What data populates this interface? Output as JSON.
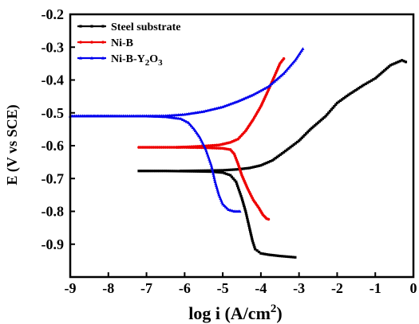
{
  "chart_data": {
    "type": "line",
    "xlabel": {
      "main": "log i (A/cm",
      "sup": "2",
      "tail": ")"
    },
    "ylabel": "E (V vs SCE)",
    "xlim": [
      -9,
      0
    ],
    "ylim": [
      -1.0,
      -0.2
    ],
    "x_ticks": [
      "-9",
      "-8",
      "-7",
      "-6",
      "-5",
      "-4",
      "-3",
      "-2",
      "-1",
      "0"
    ],
    "y_ticks": [
      "-0.2",
      "-0.3",
      "-0.4",
      "-0.5",
      "-0.6",
      "-0.7",
      "-0.8",
      "-0.9"
    ],
    "y_reversed": true,
    "legend_position": "top-left",
    "series": [
      {
        "name": "Steel substrate",
        "legend_parts": [
          {
            "t": "Steel substrate"
          }
        ],
        "color": "#000000",
        "marker": "square",
        "cathodic": [
          [
            -7.2,
            -0.677
          ],
          [
            -6.5,
            -0.677
          ],
          [
            -5.8,
            -0.678
          ],
          [
            -5.3,
            -0.679
          ],
          [
            -5.0,
            -0.682
          ],
          [
            -4.8,
            -0.69
          ],
          [
            -4.65,
            -0.71
          ],
          [
            -4.5,
            -0.76
          ],
          [
            -4.4,
            -0.8
          ],
          [
            -4.3,
            -0.85
          ],
          [
            -4.22,
            -0.89
          ],
          [
            -4.15,
            -0.915
          ],
          [
            -4.0,
            -0.928
          ],
          [
            -3.8,
            -0.932
          ],
          [
            -3.5,
            -0.936
          ],
          [
            -3.1,
            -0.94
          ]
        ],
        "anodic": [
          [
            -6.1,
            -0.677
          ],
          [
            -5.5,
            -0.676
          ],
          [
            -5.0,
            -0.675
          ],
          [
            -4.6,
            -0.672
          ],
          [
            -4.3,
            -0.668
          ],
          [
            -4.0,
            -0.66
          ],
          [
            -3.7,
            -0.645
          ],
          [
            -3.4,
            -0.62
          ],
          [
            -3.0,
            -0.585
          ],
          [
            -2.7,
            -0.55
          ],
          [
            -2.3,
            -0.51
          ],
          [
            -2.0,
            -0.47
          ],
          [
            -1.7,
            -0.445
          ],
          [
            -1.3,
            -0.415
          ],
          [
            -1.0,
            -0.395
          ],
          [
            -0.8,
            -0.375
          ],
          [
            -0.6,
            -0.355
          ],
          [
            -0.5,
            -0.35
          ],
          [
            -0.4,
            -0.345
          ],
          [
            -0.3,
            -0.34
          ],
          [
            -0.2,
            -0.345
          ]
        ]
      },
      {
        "name": "Ni-B",
        "legend_parts": [
          {
            "t": "Ni-B"
          }
        ],
        "color": "#ee0000",
        "marker": "circle",
        "cathodic": [
          [
            -7.2,
            -0.605
          ],
          [
            -6.5,
            -0.605
          ],
          [
            -6.0,
            -0.605
          ],
          [
            -5.5,
            -0.606
          ],
          [
            -5.0,
            -0.608
          ],
          [
            -4.8,
            -0.612
          ],
          [
            -4.7,
            -0.625
          ],
          [
            -4.6,
            -0.655
          ],
          [
            -4.5,
            -0.69
          ],
          [
            -4.35,
            -0.73
          ],
          [
            -4.2,
            -0.765
          ],
          [
            -4.05,
            -0.79
          ],
          [
            -3.95,
            -0.81
          ],
          [
            -3.85,
            -0.822
          ],
          [
            -3.8,
            -0.824
          ]
        ],
        "anodic": [
          [
            -6.2,
            -0.605
          ],
          [
            -5.6,
            -0.602
          ],
          [
            -5.1,
            -0.598
          ],
          [
            -4.8,
            -0.59
          ],
          [
            -4.6,
            -0.58
          ],
          [
            -4.4,
            -0.555
          ],
          [
            -4.2,
            -0.52
          ],
          [
            -4.0,
            -0.48
          ],
          [
            -3.8,
            -0.43
          ],
          [
            -3.65,
            -0.39
          ],
          [
            -3.5,
            -0.35
          ],
          [
            -3.4,
            -0.335
          ]
        ]
      },
      {
        "name": "Ni-B-Y2O3",
        "legend_parts": [
          {
            "t": "Ni-B-Y"
          },
          {
            "t": "2",
            "sub": true
          },
          {
            "t": "O"
          },
          {
            "t": "3",
            "sub": true
          }
        ],
        "color": "#0000ee",
        "marker": "triangle",
        "cathodic": [
          [
            -9.0,
            -0.51
          ],
          [
            -8.0,
            -0.51
          ],
          [
            -7.0,
            -0.51
          ],
          [
            -6.5,
            -0.512
          ],
          [
            -6.1,
            -0.518
          ],
          [
            -5.9,
            -0.53
          ],
          [
            -5.75,
            -0.55
          ],
          [
            -5.6,
            -0.575
          ],
          [
            -5.45,
            -0.61
          ],
          [
            -5.3,
            -0.66
          ],
          [
            -5.2,
            -0.71
          ],
          [
            -5.1,
            -0.75
          ],
          [
            -5.0,
            -0.778
          ],
          [
            -4.85,
            -0.795
          ],
          [
            -4.7,
            -0.8
          ],
          [
            -4.55,
            -0.8
          ]
        ],
        "anodic": [
          [
            -9.0,
            -0.51
          ],
          [
            -7.5,
            -0.51
          ],
          [
            -6.5,
            -0.509
          ],
          [
            -6.0,
            -0.505
          ],
          [
            -5.5,
            -0.496
          ],
          [
            -5.0,
            -0.482
          ],
          [
            -4.6,
            -0.465
          ],
          [
            -4.2,
            -0.445
          ],
          [
            -3.8,
            -0.42
          ],
          [
            -3.4,
            -0.38
          ],
          [
            -3.1,
            -0.34
          ],
          [
            -2.9,
            -0.305
          ]
        ]
      }
    ]
  }
}
